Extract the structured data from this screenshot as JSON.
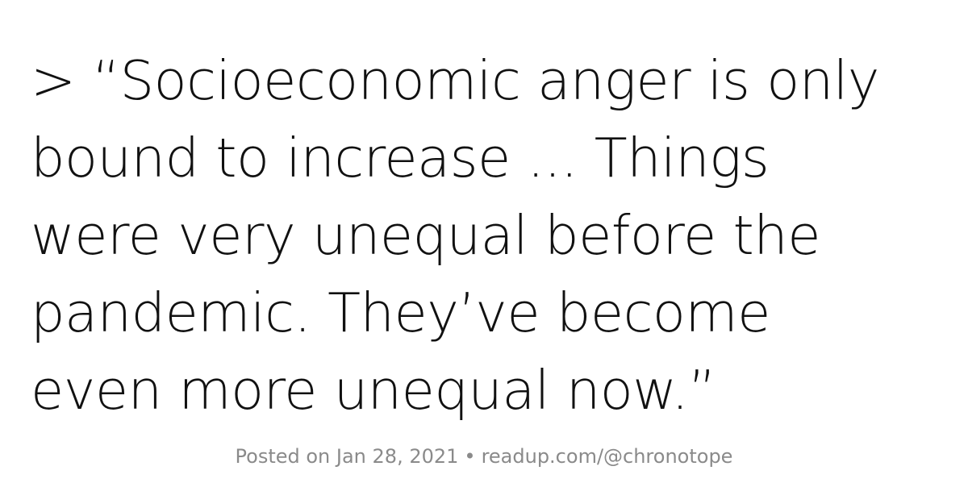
{
  "quote": {
    "lines": [
      "> “Socioeconomic anger is only",
      "bound to increase ... Things",
      "were very unequal before the",
      "pandemic. They’ve become",
      "even more unequal now.”"
    ]
  },
  "footer": {
    "posted": "Posted on Jan 28, 2021",
    "separator": "•",
    "source": "readup.com/@chronotope"
  },
  "colors": {
    "background": "#ffffff",
    "quote_text": "#111111",
    "footer_text": "#8a8a8a"
  }
}
